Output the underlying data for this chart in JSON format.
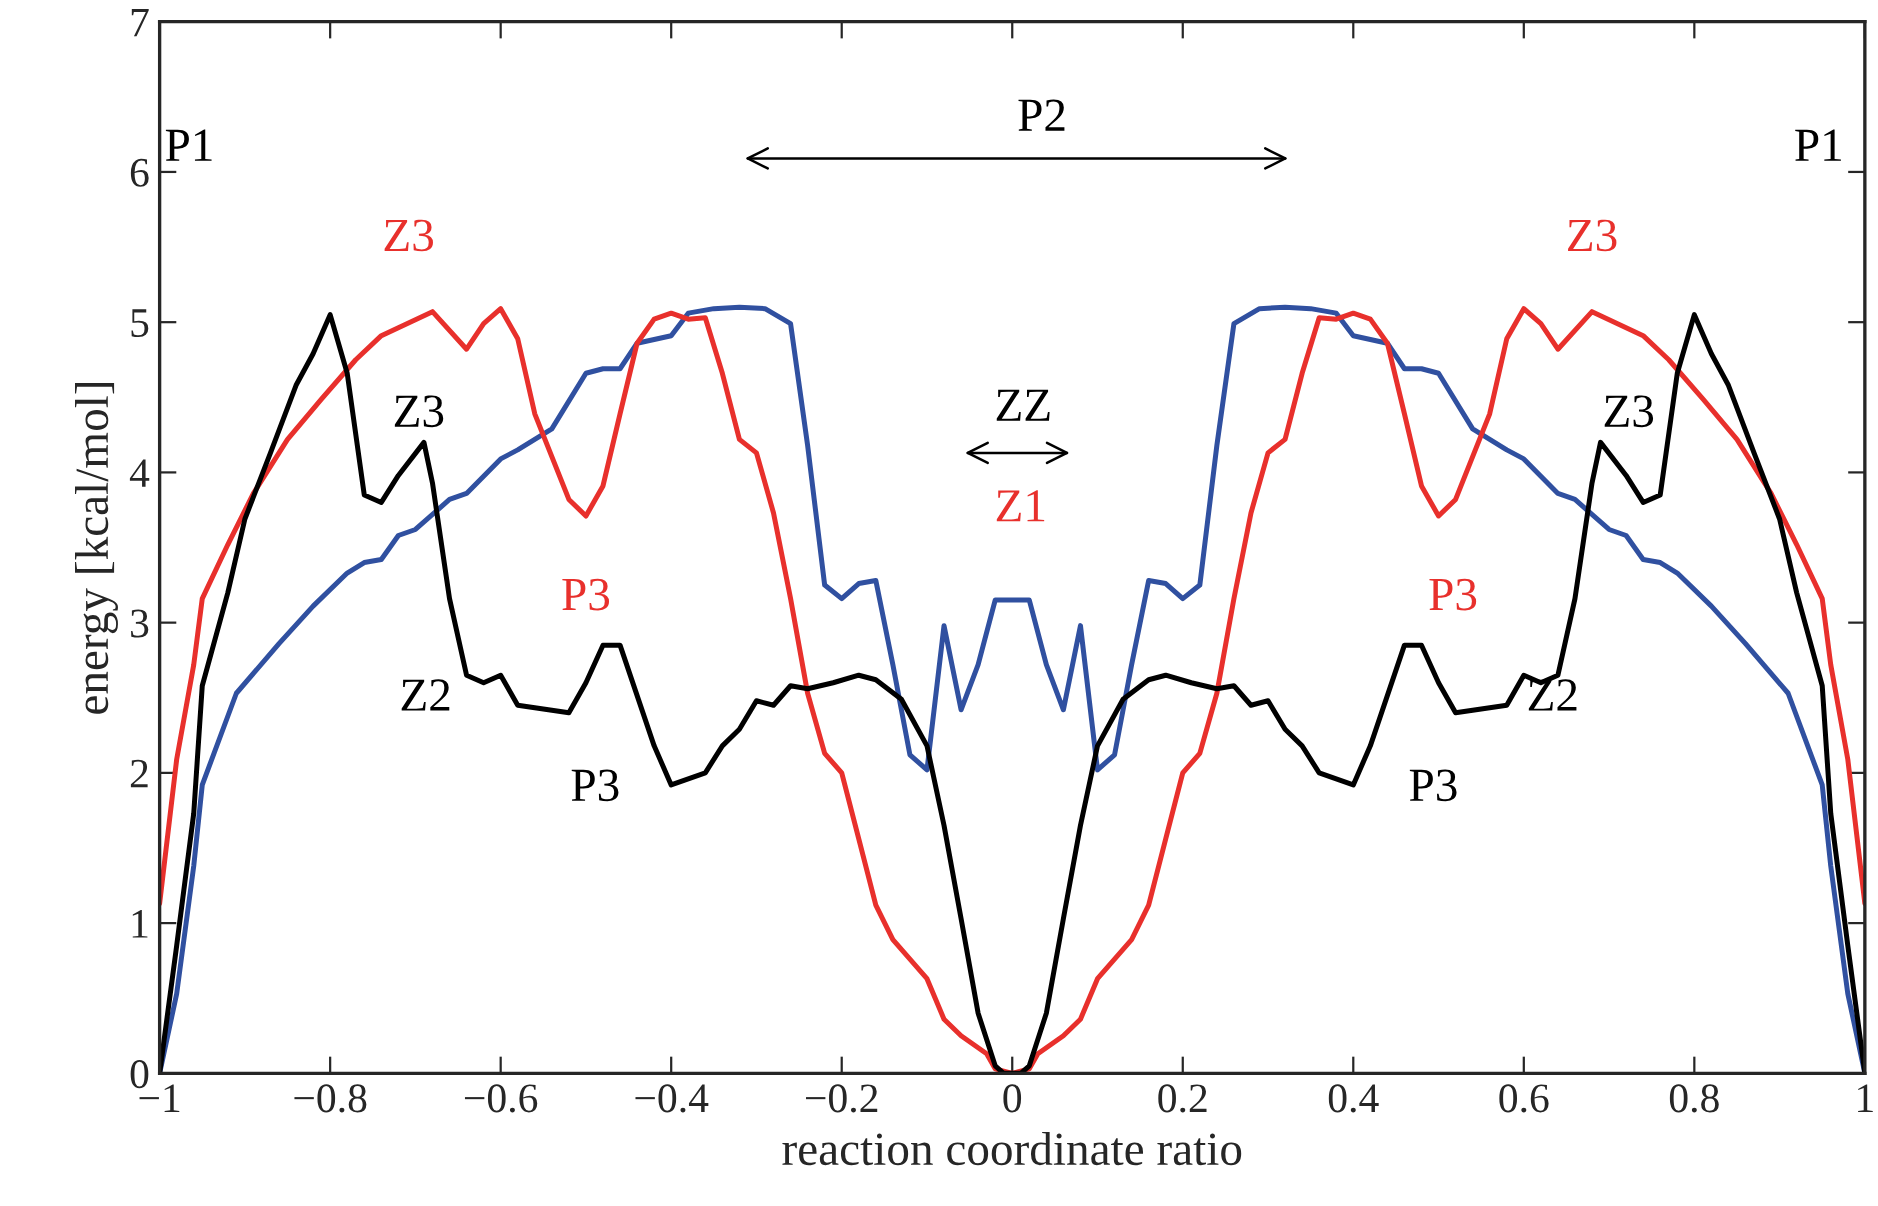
{
  "chart_data": {
    "type": "line",
    "xlabel": "reaction coordinate ratio",
    "ylabel": "energy [kcal/mol]",
    "xlim": [
      -1,
      1
    ],
    "ylim": [
      0,
      7
    ],
    "xticks": [
      {
        "value": -1,
        "label": "−1"
      },
      {
        "value": -0.8,
        "label": "−0.8"
      },
      {
        "value": -0.6,
        "label": "−0.6"
      },
      {
        "value": -0.4,
        "label": "−0.4"
      },
      {
        "value": -0.2,
        "label": "−0.2"
      },
      0,
      0.2,
      0.4,
      0.6,
      0.8,
      1
    ],
    "yticks": [
      0,
      1,
      2,
      3,
      4,
      5,
      6,
      7
    ],
    "line_style": "solid",
    "marker": "none",
    "grid": false,
    "legend": false,
    "series": [
      {
        "color": "#3050a0",
        "x": [
          -1,
          -0.98,
          -0.96,
          -0.95,
          -0.91,
          -0.86,
          -0.82,
          -0.78,
          -0.76,
          -0.74,
          -0.72,
          -0.7,
          -0.66,
          -0.64,
          -0.6,
          -0.58,
          -0.54,
          -0.5,
          -0.48,
          -0.46,
          -0.44,
          -0.4,
          -0.38,
          -0.35,
          -0.32,
          -0.29,
          -0.26,
          -0.24,
          -0.22,
          -0.2,
          -0.18,
          -0.16,
          -0.14,
          -0.12,
          -0.1,
          -0.08,
          -0.06,
          -0.04,
          -0.02,
          0,
          0.02,
          0.04,
          0.06,
          0.08,
          0.1,
          0.12,
          0.14,
          0.16,
          0.18,
          0.2,
          0.22,
          0.24,
          0.26,
          0.29,
          0.32,
          0.35,
          0.38,
          0.4,
          0.44,
          0.46,
          0.48,
          0.5,
          0.54,
          0.58,
          0.6,
          0.64,
          0.66,
          0.7,
          0.72,
          0.74,
          0.76,
          0.78,
          0.82,
          0.86,
          0.91,
          0.95,
          0.96,
          0.98,
          1
        ],
        "values": [
          0,
          0.53,
          1.38,
          1.92,
          2.53,
          2.86,
          3.11,
          3.33,
          3.4,
          3.42,
          3.58,
          3.62,
          3.82,
          3.86,
          4.09,
          4.15,
          4.29,
          4.66,
          4.69,
          4.69,
          4.86,
          4.91,
          5.06,
          5.09,
          5.1,
          5.09,
          4.99,
          4.18,
          3.25,
          3.16,
          3.26,
          3.28,
          2.72,
          2.12,
          2.02,
          2.98,
          2.42,
          2.72,
          3.15,
          3.15,
          3.15,
          2.72,
          2.42,
          2.98,
          2.02,
          2.12,
          2.72,
          3.28,
          3.26,
          3.16,
          3.25,
          4.18,
          4.99,
          5.09,
          5.1,
          5.09,
          5.06,
          4.91,
          4.86,
          4.69,
          4.69,
          4.66,
          4.29,
          4.15,
          4.09,
          3.86,
          3.82,
          3.62,
          3.58,
          3.42,
          3.4,
          3.33,
          3.11,
          2.86,
          2.53,
          1.92,
          1.38,
          0.53,
          0
        ]
      },
      {
        "color": "#e8302c",
        "x": [
          -1,
          -0.98,
          -0.96,
          -0.95,
          -0.92,
          -0.89,
          -0.85,
          -0.81,
          -0.77,
          -0.74,
          -0.71,
          -0.68,
          -0.64,
          -0.62,
          -0.6,
          -0.58,
          -0.56,
          -0.52,
          -0.5,
          -0.48,
          -0.46,
          -0.44,
          -0.42,
          -0.4,
          -0.38,
          -0.36,
          -0.34,
          -0.32,
          -0.3,
          -0.28,
          -0.26,
          -0.24,
          -0.22,
          -0.2,
          -0.18,
          -0.16,
          -0.14,
          -0.1,
          -0.08,
          -0.06,
          -0.03,
          -0.02,
          0,
          0.02,
          0.03,
          0.06,
          0.08,
          0.1,
          0.14,
          0.16,
          0.18,
          0.2,
          0.22,
          0.24,
          0.26,
          0.28,
          0.3,
          0.32,
          0.34,
          0.36,
          0.38,
          0.4,
          0.42,
          0.44,
          0.46,
          0.48,
          0.5,
          0.52,
          0.56,
          0.58,
          0.6,
          0.62,
          0.64,
          0.68,
          0.71,
          0.74,
          0.77,
          0.81,
          0.85,
          0.89,
          0.92,
          0.95,
          0.96,
          0.98,
          1
        ],
        "values": [
          1.13,
          2.09,
          2.72,
          3.16,
          3.52,
          3.86,
          4.22,
          4.49,
          4.75,
          4.91,
          4.99,
          5.07,
          4.82,
          4.99,
          5.09,
          4.89,
          4.39,
          3.82,
          3.71,
          3.91,
          4.39,
          4.86,
          5.02,
          5.06,
          5.02,
          5.03,
          4.66,
          4.22,
          4.13,
          3.73,
          3.16,
          2.53,
          2.13,
          2.0,
          1.56,
          1.12,
          0.89,
          0.63,
          0.36,
          0.25,
          0.13,
          0.03,
          0,
          0.03,
          0.13,
          0.25,
          0.36,
          0.63,
          0.89,
          1.12,
          1.56,
          2.0,
          2.13,
          2.53,
          3.16,
          3.73,
          4.13,
          4.22,
          4.66,
          5.03,
          5.02,
          5.06,
          5.02,
          4.86,
          4.39,
          3.91,
          3.71,
          3.82,
          4.39,
          4.89,
          5.09,
          4.99,
          4.82,
          5.07,
          4.99,
          4.91,
          4.75,
          4.49,
          4.22,
          3.86,
          3.52,
          3.16,
          2.72,
          2.09,
          1.13
        ]
      },
      {
        "color": "#000000",
        "x": [
          -1,
          -0.98,
          -0.96,
          -0.95,
          -0.92,
          -0.9,
          -0.87,
          -0.84,
          -0.82,
          -0.8,
          -0.78,
          -0.76,
          -0.74,
          -0.72,
          -0.69,
          -0.68,
          -0.66,
          -0.64,
          -0.62,
          -0.6,
          -0.58,
          -0.52,
          -0.5,
          -0.48,
          -0.46,
          -0.42,
          -0.4,
          -0.36,
          -0.34,
          -0.32,
          -0.3,
          -0.28,
          -0.26,
          -0.24,
          -0.21,
          -0.18,
          -0.16,
          -0.13,
          -0.1,
          -0.08,
          -0.06,
          -0.04,
          -0.02,
          -0.01,
          0,
          0.01,
          0.02,
          0.04,
          0.06,
          0.08,
          0.1,
          0.13,
          0.16,
          0.18,
          0.21,
          0.24,
          0.26,
          0.28,
          0.3,
          0.32,
          0.34,
          0.36,
          0.4,
          0.42,
          0.46,
          0.48,
          0.5,
          0.52,
          0.58,
          0.6,
          0.62,
          0.64,
          0.66,
          0.68,
          0.69,
          0.72,
          0.74,
          0.76,
          0.78,
          0.8,
          0.82,
          0.84,
          0.87,
          0.9,
          0.92,
          0.95,
          0.96,
          0.98,
          1
        ],
        "values": [
          0,
          0.85,
          1.73,
          2.58,
          3.2,
          3.69,
          4.13,
          4.58,
          4.79,
          5.05,
          4.66,
          3.85,
          3.8,
          3.98,
          4.2,
          3.93,
          3.16,
          2.65,
          2.6,
          2.65,
          2.45,
          2.4,
          2.6,
          2.85,
          2.85,
          2.18,
          1.92,
          2.0,
          2.18,
          2.29,
          2.48,
          2.45,
          2.58,
          2.56,
          2.6,
          2.65,
          2.62,
          2.49,
          2.18,
          1.65,
          1.03,
          0.4,
          0.05,
          0,
          0,
          0,
          0.05,
          0.4,
          1.03,
          1.65,
          2.18,
          2.49,
          2.62,
          2.65,
          2.6,
          2.56,
          2.58,
          2.45,
          2.48,
          2.29,
          2.18,
          2.0,
          1.92,
          2.18,
          2.85,
          2.85,
          2.6,
          2.4,
          2.45,
          2.65,
          2.6,
          2.65,
          3.16,
          3.93,
          4.2,
          3.98,
          3.8,
          3.85,
          4.66,
          5.05,
          4.79,
          4.58,
          4.13,
          3.69,
          3.2,
          2.58,
          1.73,
          0.85,
          0
        ]
      }
    ],
    "annotations": [
      "P1",
      "P1",
      "P2",
      "Z3",
      "Z3",
      "Z3",
      "Z3",
      "ZZ",
      "Z1",
      "P3",
      "P3",
      "Z2",
      "Z2",
      "P3",
      "P3"
    ]
  }
}
